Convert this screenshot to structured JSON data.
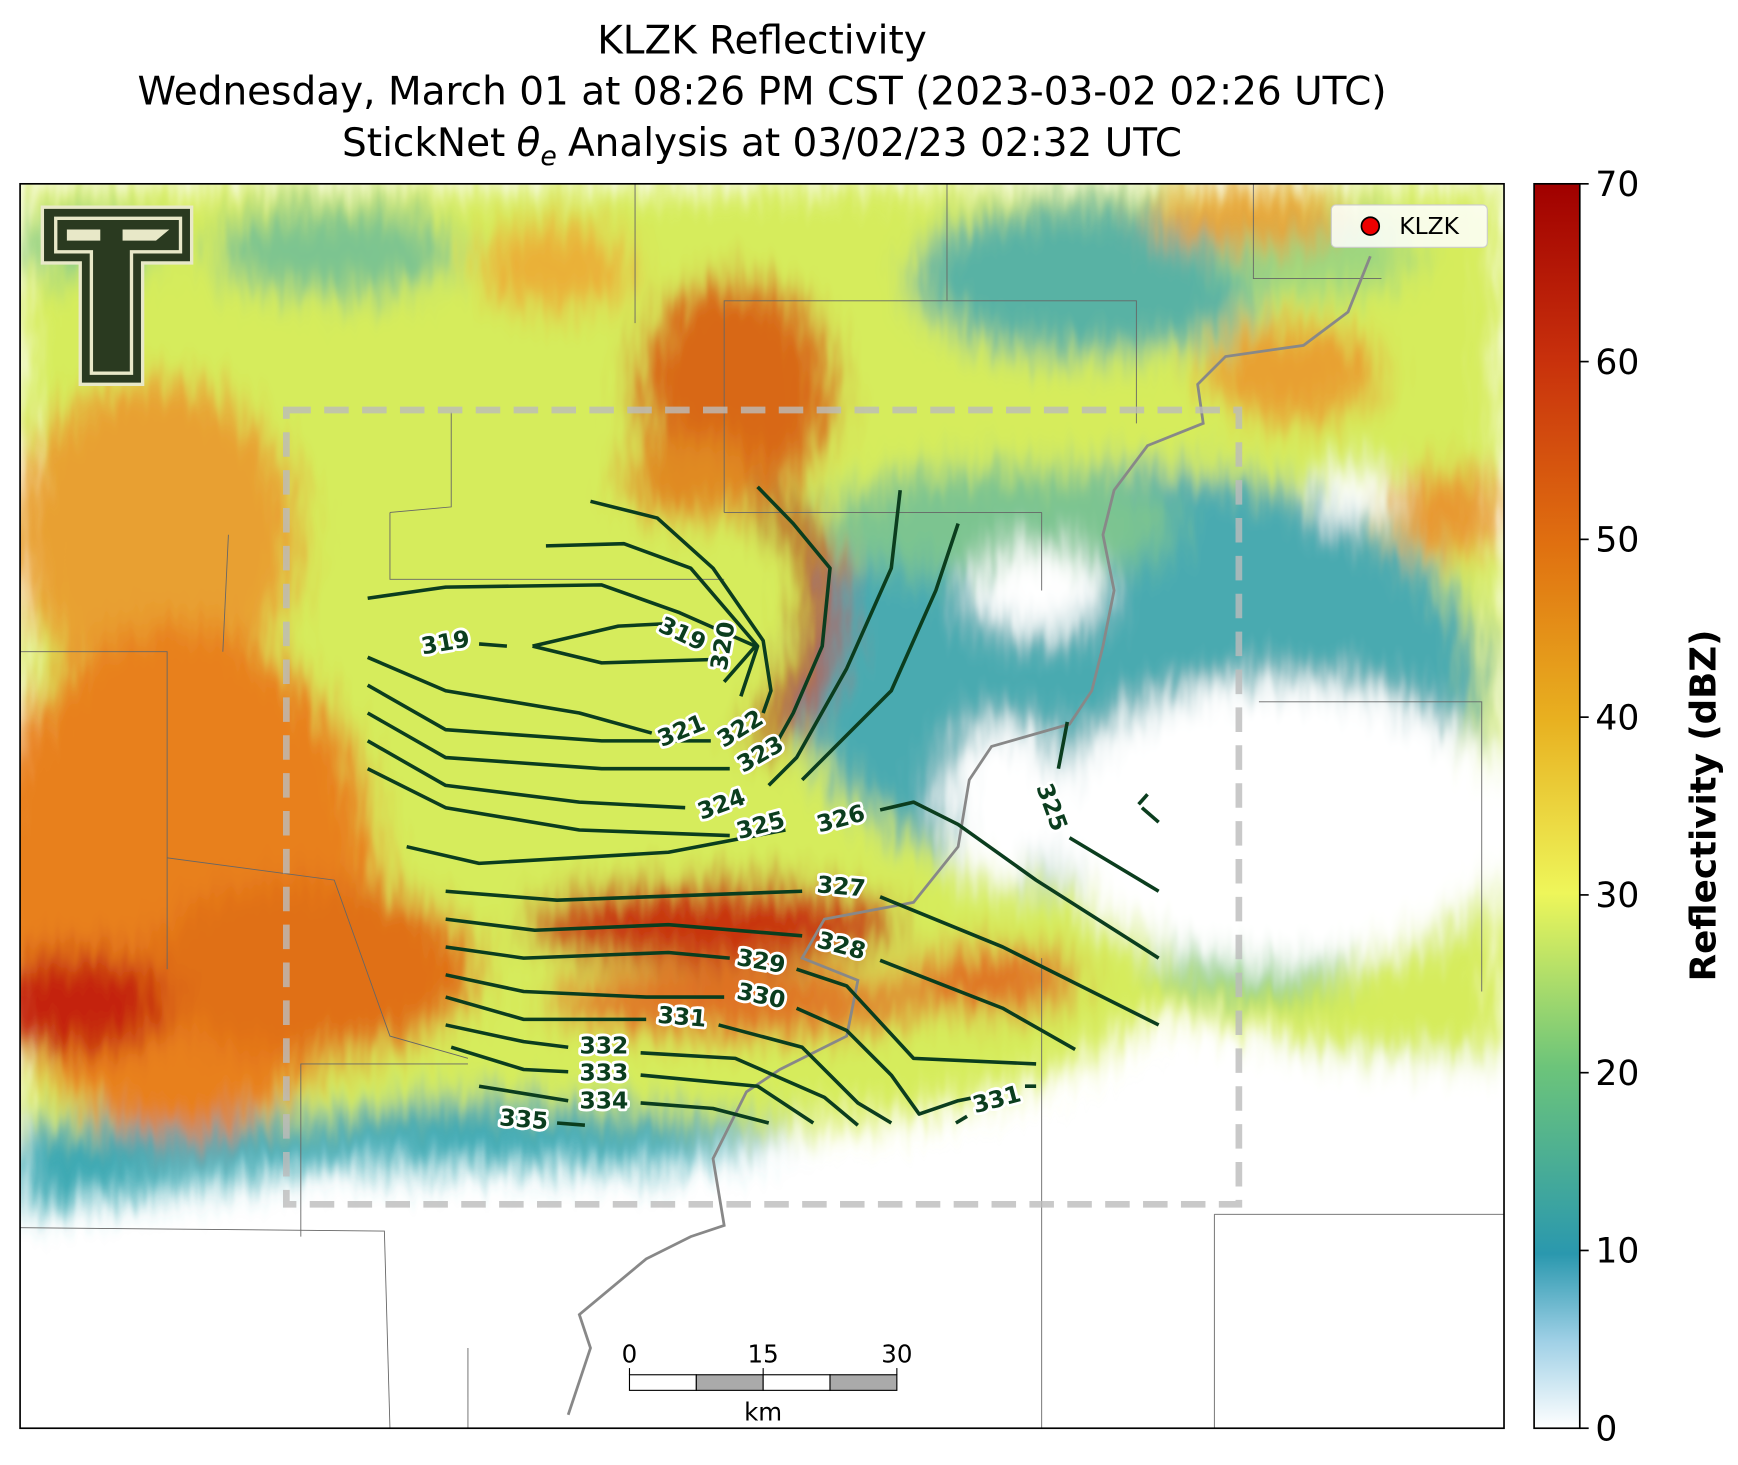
{
  "title": {
    "line1": "KLZK Reflectivity",
    "line2": "Wednesday, March 01 at 08:26 PM CST (2023-03-02 02:26 UTC)",
    "line3": {
      "prefix": "StickNet",
      "symbol": "θ",
      "subscript": "e",
      "suffix": "Analysis at 03/02/23 02:32 UTC"
    }
  },
  "legend": {
    "label": "KLZK"
  },
  "contour_labels": [
    319,
    319,
    320,
    321,
    322,
    323,
    324,
    325,
    326,
    327,
    328,
    329,
    330,
    331,
    332,
    333,
    334,
    335,
    331,
    325
  ],
  "scale_bar": {
    "ticks": [
      0,
      15,
      30
    ],
    "unit": "km"
  },
  "colorbar": {
    "label": "Reflectivity (dBZ)",
    "lim": [
      0,
      70
    ],
    "ticks": [
      0,
      10,
      20,
      30,
      40,
      50,
      60,
      70
    ]
  }
}
